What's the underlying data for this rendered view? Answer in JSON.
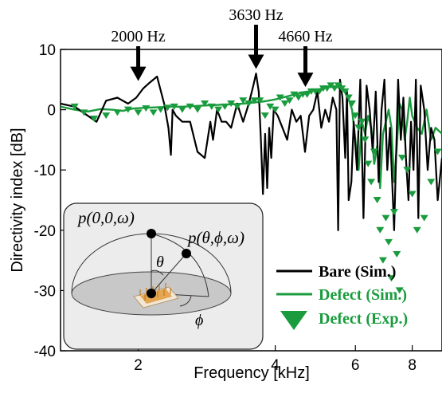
{
  "chart_data": {
    "type": "line",
    "xlabel": "Frequency [kHz]",
    "ylabel": "Directivity index [dB]",
    "xscale": "log",
    "xlim": [
      1.35,
      9.3
    ],
    "ylim": [
      -40,
      10
    ],
    "xticks": [
      2,
      4,
      6,
      8
    ],
    "yticks": [
      10,
      0,
      -10,
      -20,
      -30,
      -40
    ],
    "grid": false,
    "legend_position": "bottom-right",
    "annotations": [
      {
        "label": "2000 Hz",
        "x": 2.0,
        "y": 4.5
      },
      {
        "label": "3630 Hz",
        "x": 3.63,
        "y": 6.5
      },
      {
        "label": "4660 Hz",
        "x": 4.66,
        "y": 3.5
      }
    ],
    "series": [
      {
        "name": "Bare (Sim.)",
        "style": "line",
        "color": "#000000",
        "x": [
          1.35,
          1.45,
          1.55,
          1.62,
          1.7,
          1.8,
          1.9,
          1.98,
          2.05,
          2.12,
          2.2,
          2.28,
          2.33,
          2.36,
          2.38,
          2.42,
          2.5,
          2.6,
          2.7,
          2.8,
          2.88,
          2.92,
          2.98,
          3.05,
          3.12,
          3.2,
          3.3,
          3.4,
          3.5,
          3.58,
          3.63,
          3.68,
          3.72,
          3.76,
          3.8,
          3.84,
          3.88,
          3.92,
          3.97,
          4.05,
          4.15,
          4.25,
          4.35,
          4.45,
          4.55,
          4.65,
          4.75,
          4.85,
          4.95,
          5.05,
          5.15,
          5.25,
          5.35,
          5.45,
          5.5,
          5.55,
          5.62,
          5.7,
          5.75,
          5.8,
          5.88,
          5.95,
          6.05,
          6.15,
          6.25,
          6.35,
          6.45,
          6.55,
          6.65,
          6.75,
          6.85,
          6.95,
          7.05,
          7.15,
          7.3,
          7.45,
          7.55,
          7.65,
          7.75,
          7.85,
          7.95,
          8.05,
          8.15,
          8.25,
          8.35,
          8.5,
          8.65,
          8.8,
          8.95,
          9.1,
          9.3
        ],
        "y": [
          1,
          0.5,
          -1,
          -2,
          1.5,
          2,
          1,
          2,
          3.5,
          4.5,
          5.5,
          1,
          -3,
          -7.5,
          0,
          -1,
          -2,
          -2,
          -7,
          -8,
          -2,
          -5,
          0,
          -2,
          -2,
          -3,
          1,
          -2,
          1,
          4,
          6,
          3,
          -5,
          -14,
          -4,
          -13,
          -3,
          -8,
          0,
          -1,
          -3,
          -5,
          0,
          -2,
          -1,
          -7,
          -1,
          0,
          3,
          -3,
          0,
          -2,
          2,
          0,
          -20,
          5,
          2,
          -8,
          3,
          -15,
          -12,
          -2,
          -10,
          5,
          -18,
          4,
          0,
          -7,
          3,
          -12,
          0,
          5,
          -10,
          -3,
          -20,
          5,
          -5,
          2,
          -8,
          -15,
          -2,
          -10,
          5,
          -18,
          4,
          0,
          -10,
          -3,
          -5,
          -15,
          -8
        ]
      },
      {
        "name": "Defect (Sim.)",
        "style": "line",
        "color": "#1a9c3e",
        "x": [
          1.35,
          1.45,
          1.55,
          1.65,
          1.75,
          1.85,
          1.95,
          2.05,
          2.2,
          2.35,
          2.5,
          2.65,
          2.8,
          3.0,
          3.2,
          3.4,
          3.6,
          3.8,
          4.0,
          4.2,
          4.4,
          4.6,
          4.8,
          5.0,
          5.2,
          5.4,
          5.6,
          5.75,
          5.9,
          6.0,
          6.1,
          6.2,
          6.3,
          6.4,
          6.5,
          6.6,
          6.7,
          6.8,
          6.9,
          7.0,
          7.1,
          7.2,
          7.3,
          7.4,
          7.5,
          7.6,
          7.7,
          7.8,
          7.9,
          8.0,
          8.2,
          8.4,
          8.6,
          8.8,
          9.0,
          9.3
        ],
        "y": [
          0.5,
          0,
          -0.3,
          0.1,
          0,
          -0.2,
          0.2,
          0.3,
          0.4,
          0.5,
          0.5,
          0.6,
          0.7,
          0.8,
          0.9,
          1,
          1.2,
          1.4,
          1.7,
          2.1,
          2.5,
          2.9,
          3.1,
          3.4,
          3.7,
          3.9,
          3.5,
          2.5,
          0,
          -5,
          -10,
          -2,
          -4,
          -1,
          -3,
          -9,
          -6,
          -13,
          -4,
          -2,
          0,
          -3,
          -12,
          -6,
          1,
          0,
          -5,
          -2,
          2,
          -1,
          -3,
          -4,
          0,
          -5,
          -3,
          -4
        ]
      },
      {
        "name": "Defect (Exp.)",
        "style": "marker",
        "color": "#1a9c3e",
        "x": [
          1.45,
          1.52,
          1.6,
          1.7,
          1.8,
          1.9,
          2.0,
          2.08,
          2.16,
          2.24,
          2.32,
          2.4,
          2.5,
          2.6,
          2.7,
          2.8,
          2.9,
          3.0,
          3.1,
          3.2,
          3.3,
          3.4,
          3.5,
          3.6,
          3.7,
          3.8,
          3.9,
          4.0,
          4.1,
          4.2,
          4.3,
          4.4,
          4.5,
          4.6,
          4.7,
          4.8,
          4.9,
          5.0,
          5.1,
          5.2,
          5.3,
          5.4,
          5.5,
          5.6,
          5.7,
          5.8,
          5.9,
          6.0,
          6.1,
          6.2,
          6.3,
          6.4,
          6.5,
          6.6,
          6.7,
          6.8,
          6.9,
          7.0,
          7.1,
          7.2,
          7.3,
          7.4,
          7.5,
          7.6,
          7.8,
          8.0,
          8.2,
          8.5,
          8.8,
          9.1
        ],
        "y": [
          0.5,
          -0.5,
          -1.5,
          -1,
          -0.5,
          0,
          -0.5,
          0.2,
          -0.5,
          0,
          0.3,
          0.5,
          0,
          0.5,
          0,
          1,
          0.5,
          0,
          0.5,
          1,
          0.5,
          1.5,
          1,
          1.5,
          1.5,
          -1,
          0.5,
          0,
          2,
          1,
          1.5,
          2.5,
          2,
          2.5,
          2.5,
          3,
          3,
          3,
          3.5,
          3.5,
          4,
          3.5,
          4,
          3.5,
          3,
          2,
          1,
          -1,
          -3,
          -2,
          -5,
          -9,
          -12,
          -7,
          -15,
          -20,
          -25,
          -18,
          -22,
          -28,
          -17,
          -24,
          -30,
          -8,
          -10,
          -14,
          -20,
          -18,
          -12,
          -7
        ]
      }
    ]
  },
  "inset": {
    "top_label": "p(0,0,ω)",
    "side_label": "p(θ,ϕ,ω)",
    "theta_label": "θ",
    "phi_label": "ϕ"
  },
  "colors": {
    "bare": "#000000",
    "defect": "#1a9c3e",
    "inset_bg": "#ececec"
  }
}
